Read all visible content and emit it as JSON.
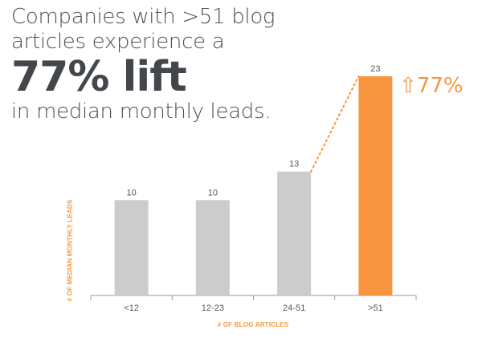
{
  "headline": {
    "line1": "Companies with >51 blog",
    "line2": "articles experience a",
    "line3": "77% lift",
    "line4": "in median monthly leads."
  },
  "callout": {
    "arrow": "⇧",
    "text": "77%"
  },
  "chart_data": {
    "type": "bar",
    "categories": [
      "<12",
      "12-23",
      "24-51",
      ">51"
    ],
    "values": [
      10,
      10,
      13,
      23
    ],
    "data_labels": [
      "10",
      "10",
      "13",
      "23"
    ],
    "title": "",
    "xlabel": "# OF BLOG ARTICLES",
    "ylabel": "# OF MEDIAN MONTHLY LEADS",
    "ylim": [
      0,
      23
    ],
    "grid": false,
    "colors": {
      "default": "#cccccc",
      "highlight": "#f7963f",
      "axis": "#9a9a9a",
      "connector": "#f7963f"
    },
    "highlight_index": 3,
    "connector_between": [
      2,
      3
    ]
  }
}
